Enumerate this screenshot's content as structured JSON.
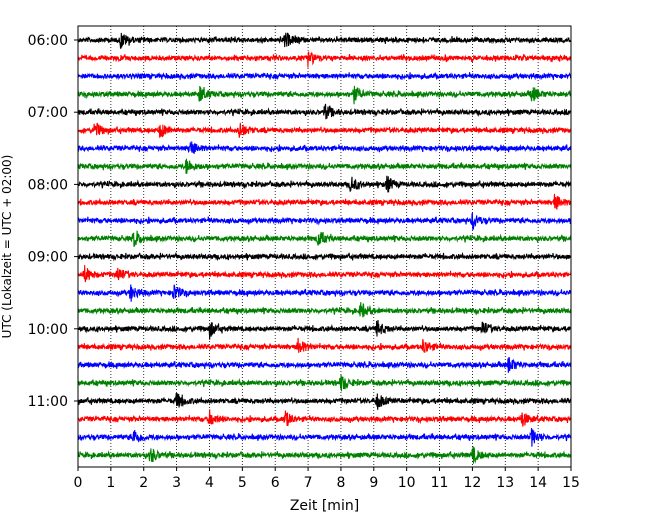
{
  "chart_data": {
    "type": "line",
    "subtype": "helicorder",
    "xlabel": "Zeit  [min]",
    "ylabel": "UTC (Lokalzeit = UTC + 02:00)",
    "x_ticks": [
      0,
      1,
      2,
      3,
      4,
      5,
      6,
      7,
      8,
      9,
      10,
      11,
      12,
      13,
      14,
      15
    ],
    "xlim": [
      0,
      15
    ],
    "y_tick_labels": [
      "06:00",
      "07:00",
      "08:00",
      "09:00",
      "10:00",
      "11:00"
    ],
    "y_tick_rows": [
      0,
      4,
      8,
      12,
      16,
      20
    ],
    "row_count": 24,
    "row_interval_min": 15,
    "row_colors": [
      "#000000",
      "#ff0000",
      "#0000ff",
      "#008000"
    ],
    "vertical_grid": "dotted",
    "events": [
      {
        "row": 0,
        "t": 1.3
      },
      {
        "row": 0,
        "t": 6.3
      },
      {
        "row": 1,
        "t": 7.0
      },
      {
        "row": 3,
        "t": 3.7
      },
      {
        "row": 3,
        "t": 8.4
      },
      {
        "row": 3,
        "t": 13.8
      },
      {
        "row": 4,
        "t": 7.5
      },
      {
        "row": 5,
        "t": 0.5
      },
      {
        "row": 5,
        "t": 2.5
      },
      {
        "row": 5,
        "t": 4.9
      },
      {
        "row": 6,
        "t": 3.4
      },
      {
        "row": 7,
        "t": 3.3
      },
      {
        "row": 8,
        "t": 8.3
      },
      {
        "row": 8,
        "t": 9.4
      },
      {
        "row": 9,
        "t": 14.5
      },
      {
        "row": 10,
        "t": 12.0
      },
      {
        "row": 11,
        "t": 1.7
      },
      {
        "row": 11,
        "t": 7.3
      },
      {
        "row": 13,
        "t": 0.2
      },
      {
        "row": 13,
        "t": 1.2
      },
      {
        "row": 14,
        "t": 1.6
      },
      {
        "row": 14,
        "t": 2.9
      },
      {
        "row": 15,
        "t": 8.6
      },
      {
        "row": 16,
        "t": 4.0
      },
      {
        "row": 16,
        "t": 9.1
      },
      {
        "row": 16,
        "t": 12.3
      },
      {
        "row": 17,
        "t": 6.7
      },
      {
        "row": 17,
        "t": 10.5
      },
      {
        "row": 18,
        "t": 13.1
      },
      {
        "row": 19,
        "t": 8.0
      },
      {
        "row": 20,
        "t": 3.0
      },
      {
        "row": 20,
        "t": 9.1
      },
      {
        "row": 21,
        "t": 4.0
      },
      {
        "row": 21,
        "t": 6.3
      },
      {
        "row": 21,
        "t": 13.5
      },
      {
        "row": 22,
        "t": 1.7
      },
      {
        "row": 22,
        "t": 13.8
      },
      {
        "row": 23,
        "t": 2.2
      },
      {
        "row": 23,
        "t": 12.0
      }
    ]
  }
}
